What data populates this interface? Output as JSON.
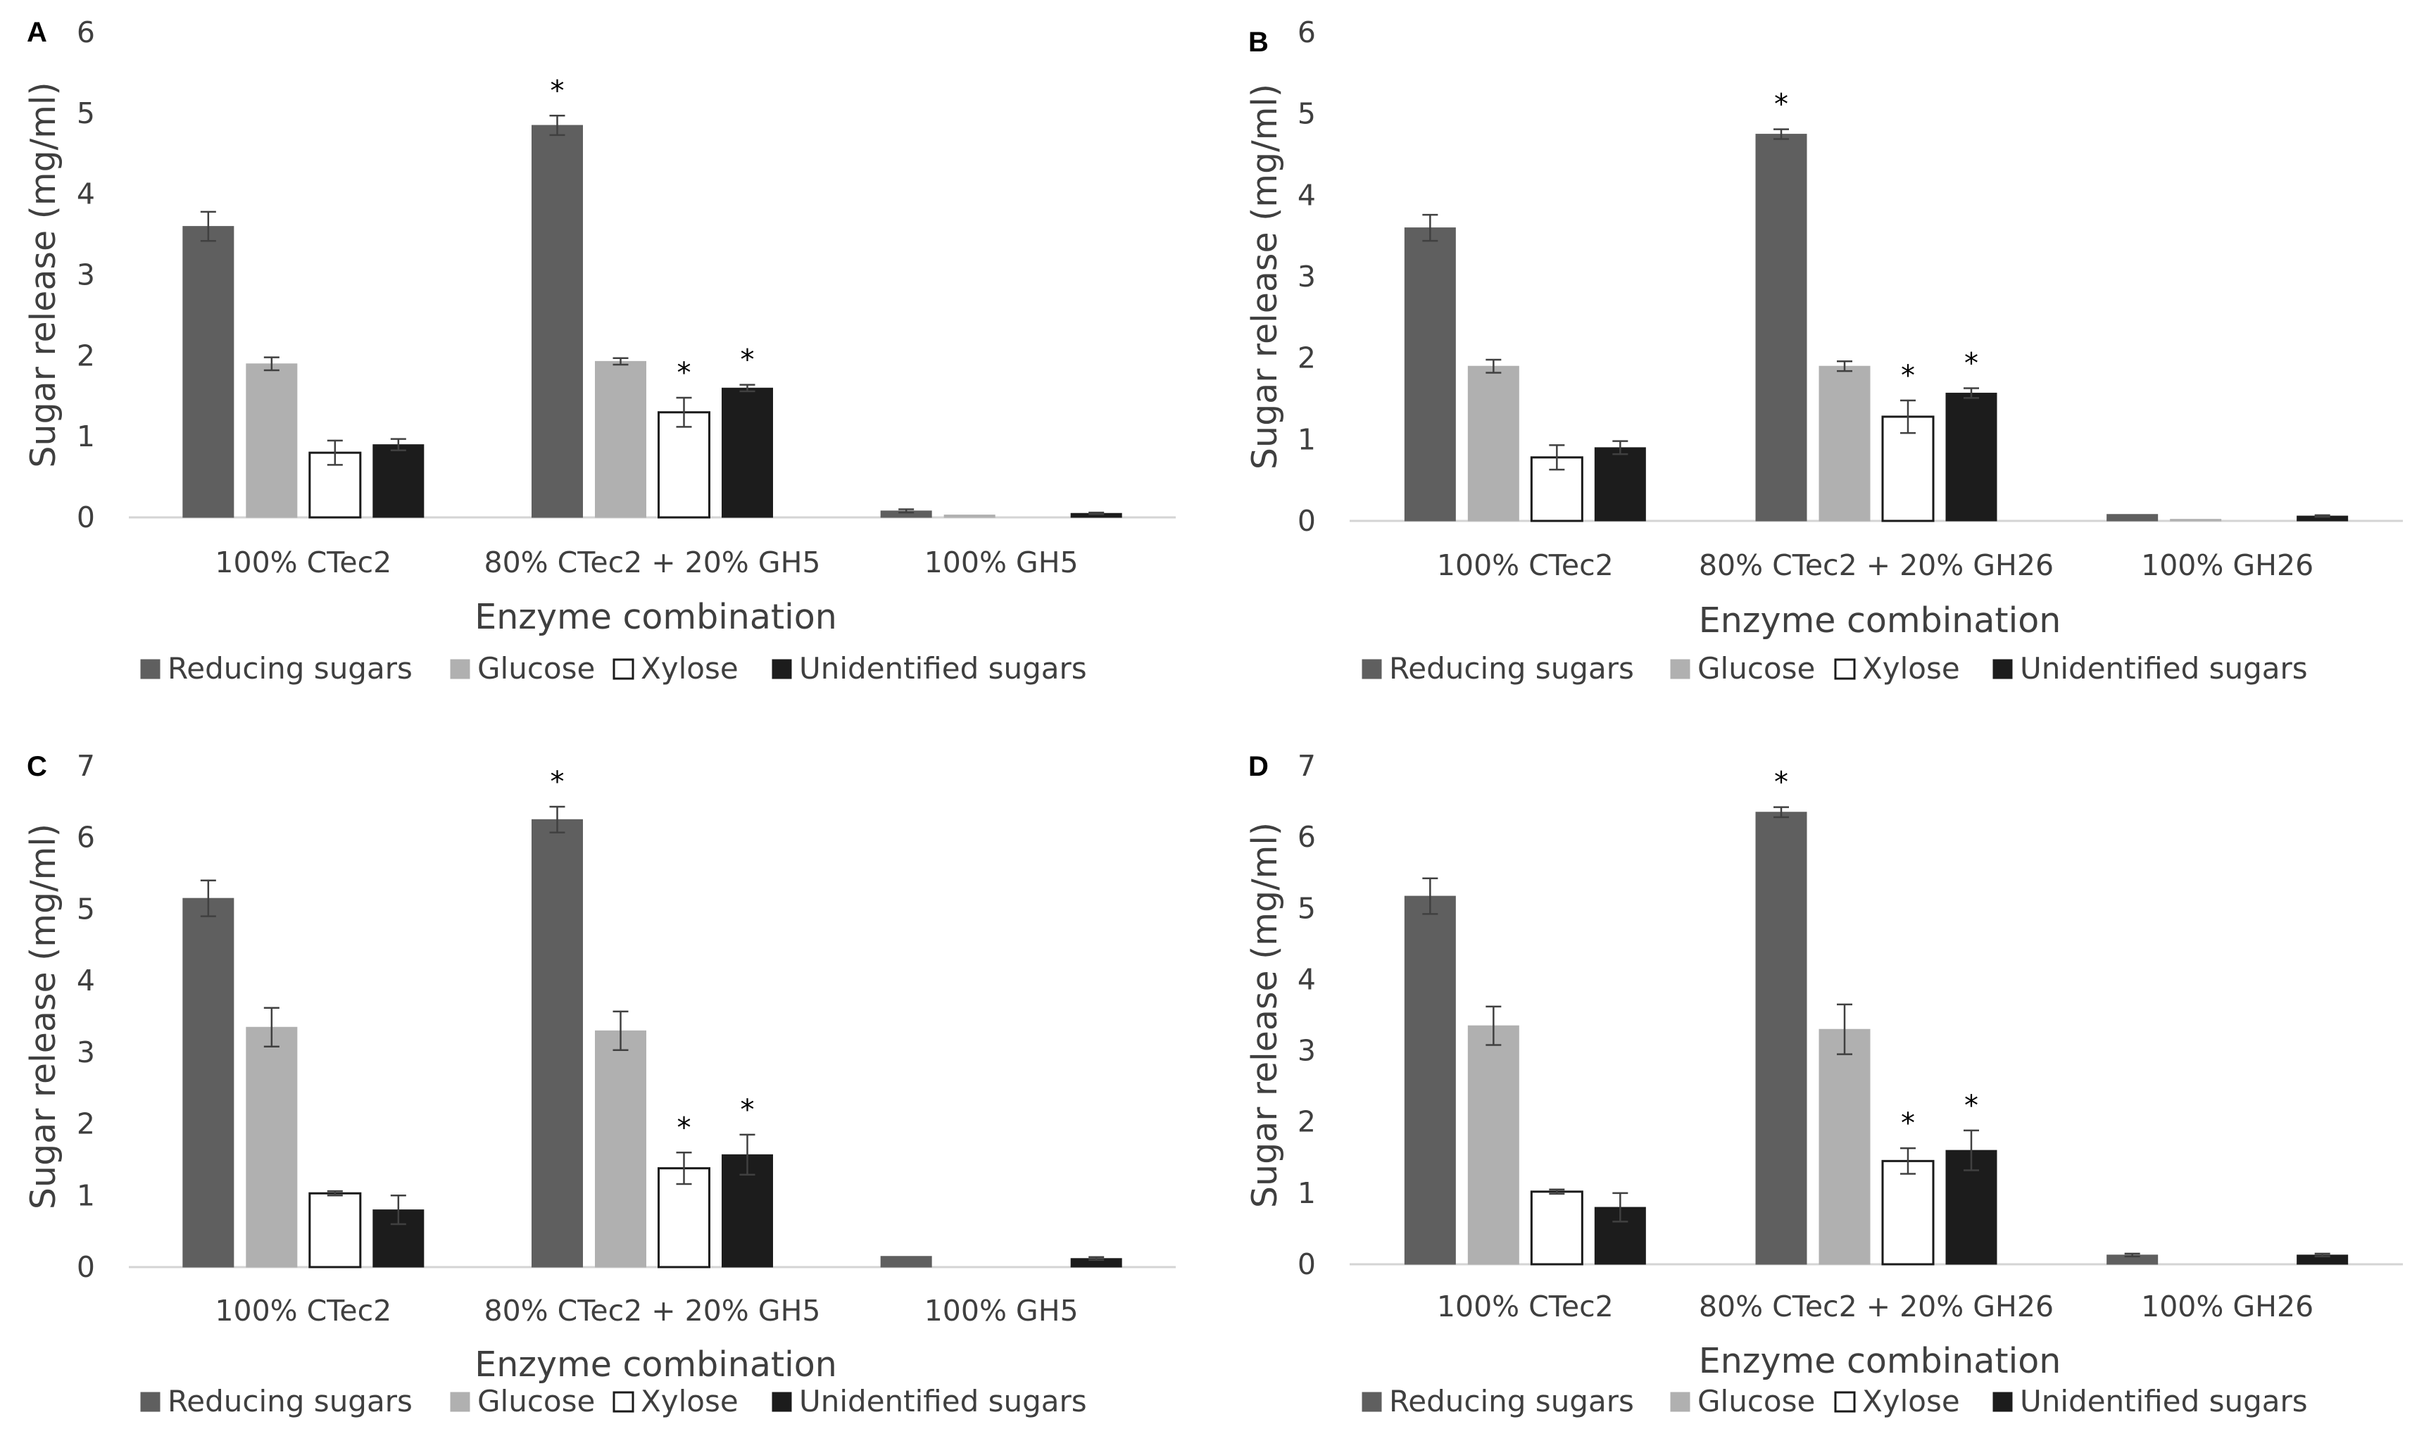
{
  "chart_data": [
    {
      "type": "bar",
      "panel": "A",
      "title": "",
      "xlabel": "Enzyme combination",
      "ylabel": "Sugar release (mg/ml)",
      "ylim": [
        0,
        6
      ],
      "yticks": [
        "0",
        "1",
        "2",
        "3",
        "4",
        "5",
        "6"
      ],
      "categories": [
        "100% CTec2",
        "80% CTec2 + 20% GH5",
        "100% GH5"
      ],
      "series": [
        {
          "name": "Reducing sugars",
          "values": [
            3.6,
            4.85,
            0.08
          ],
          "errors": [
            0.18,
            0.12,
            0.02
          ]
        },
        {
          "name": "Glucose",
          "values": [
            1.9,
            1.93,
            0.03
          ],
          "errors": [
            0.08,
            0.04,
            0.0
          ]
        },
        {
          "name": "Xylose",
          "values": [
            0.8,
            1.3,
            0.0
          ],
          "errors": [
            0.15,
            0.18,
            0.0
          ]
        },
        {
          "name": "Unidentified sugars",
          "values": [
            0.9,
            1.6,
            0.05
          ],
          "errors": [
            0.07,
            0.04,
            0.01
          ]
        }
      ],
      "significance": [
        {
          "category": 1,
          "series": 0,
          "label": "*"
        },
        {
          "category": 1,
          "series": 2,
          "label": "*"
        },
        {
          "category": 1,
          "series": 3,
          "label": "*"
        }
      ]
    },
    {
      "type": "bar",
      "panel": "B",
      "title": "",
      "xlabel": "Enzyme combination",
      "ylabel": "Sugar release (mg/ml)",
      "ylim": [
        0,
        6
      ],
      "yticks": [
        "0",
        "1",
        "2",
        "3",
        "4",
        "5",
        "6"
      ],
      "categories": [
        "100% CTec2",
        "80% CTec2 + 20% GH26",
        "100% GH26"
      ],
      "series": [
        {
          "name": "Reducing sugars",
          "values": [
            3.6,
            4.75,
            0.08
          ],
          "errors": [
            0.16,
            0.06,
            0.0
          ]
        },
        {
          "name": "Glucose",
          "values": [
            1.9,
            1.9,
            0.02
          ],
          "errors": [
            0.08,
            0.06,
            0.0
          ]
        },
        {
          "name": "Xylose",
          "values": [
            0.78,
            1.28,
            0.0
          ],
          "errors": [
            0.15,
            0.2,
            0.0
          ]
        },
        {
          "name": "Unidentified sugars",
          "values": [
            0.9,
            1.57,
            0.06
          ],
          "errors": [
            0.08,
            0.06,
            0.01
          ]
        }
      ],
      "significance": [
        {
          "category": 1,
          "series": 0,
          "label": "*"
        },
        {
          "category": 1,
          "series": 2,
          "label": "*"
        },
        {
          "category": 1,
          "series": 3,
          "label": "*"
        }
      ]
    },
    {
      "type": "bar",
      "panel": "C",
      "title": "",
      "xlabel": "Enzyme combination",
      "ylabel": "Sugar release (mg/ml)",
      "ylim": [
        0,
        7
      ],
      "yticks": [
        "0",
        "1",
        "2",
        "3",
        "4",
        "5",
        "6",
        "7"
      ],
      "categories": [
        "100% CTec2",
        "80% CTec2 + 20% GH5",
        "100% GH5"
      ],
      "series": [
        {
          "name": "Reducing sugars",
          "values": [
            5.15,
            6.25,
            0.15
          ],
          "errors": [
            0.25,
            0.18,
            0.0
          ]
        },
        {
          "name": "Glucose",
          "values": [
            3.35,
            3.3,
            0.0
          ],
          "errors": [
            0.27,
            0.27,
            0.0
          ]
        },
        {
          "name": "Xylose",
          "values": [
            1.03,
            1.38,
            0.0
          ],
          "errors": [
            0.03,
            0.22,
            0.0
          ]
        },
        {
          "name": "Unidentified sugars",
          "values": [
            0.8,
            1.57,
            0.12
          ],
          "errors": [
            0.2,
            0.28,
            0.02
          ]
        }
      ],
      "significance": [
        {
          "category": 1,
          "series": 0,
          "label": "*"
        },
        {
          "category": 1,
          "series": 2,
          "label": "*"
        },
        {
          "category": 1,
          "series": 3,
          "label": "*"
        }
      ]
    },
    {
      "type": "bar",
      "panel": "D",
      "title": "",
      "xlabel": "Enzyme combination",
      "ylabel": "Sugar release (mg/ml)",
      "ylim": [
        0,
        7
      ],
      "yticks": [
        "0",
        "1",
        "2",
        "3",
        "4",
        "5",
        "6",
        "7"
      ],
      "categories": [
        "100% CTec2",
        "80% CTec2 + 20% GH26",
        "100% GH26"
      ],
      "series": [
        {
          "name": "Reducing sugars",
          "values": [
            5.17,
            6.35,
            0.13
          ],
          "errors": [
            0.25,
            0.07,
            0.02
          ]
        },
        {
          "name": "Glucose",
          "values": [
            3.35,
            3.3,
            0.0
          ],
          "errors": [
            0.27,
            0.35,
            0.0
          ]
        },
        {
          "name": "Xylose",
          "values": [
            1.02,
            1.45,
            0.0
          ],
          "errors": [
            0.03,
            0.18,
            0.0
          ]
        },
        {
          "name": "Unidentified sugars",
          "values": [
            0.8,
            1.6,
            0.13
          ],
          "errors": [
            0.2,
            0.28,
            0.02
          ]
        }
      ],
      "significance": [
        {
          "category": 1,
          "series": 0,
          "label": "*"
        },
        {
          "category": 1,
          "series": 2,
          "label": "*"
        },
        {
          "category": 1,
          "series": 3,
          "label": "*"
        }
      ]
    }
  ],
  "legend": {
    "entries": [
      "Reducing sugars",
      "Glucose",
      "Xylose",
      "Unidentified sugars"
    ]
  },
  "style": {
    "series_fill": [
      "#5f5f5f",
      "#b0b0b0",
      "#ffffff",
      "#1c1c1c"
    ],
    "series_stroke": [
      "#5f5f5f",
      "#b0b0b0",
      "#1a1a1a",
      "#1c1c1c"
    ],
    "axis_color": "#d4d4d4",
    "text_color": "#3f3f3f",
    "error_color": "#404040"
  }
}
